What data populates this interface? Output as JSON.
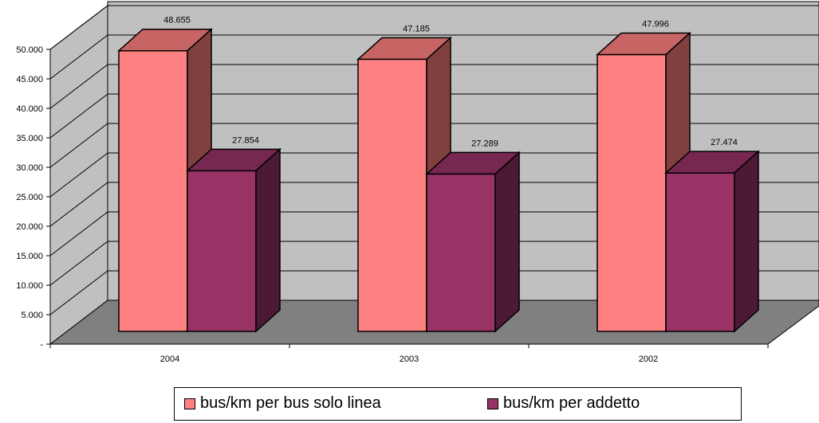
{
  "chart_data": {
    "type": "bar",
    "variant": "3d-clustered-column",
    "categories": [
      "2004",
      "2003",
      "2002"
    ],
    "series": [
      {
        "name": "bus/km per bus solo linea",
        "values": [
          48655,
          47185,
          47996
        ],
        "labels": [
          "48.655",
          "47.185",
          "47.996"
        ],
        "color": "#ff8080"
      },
      {
        "name": "bus/km per addetto",
        "values": [
          27854,
          27289,
          27474
        ],
        "labels": [
          "27.854",
          "27.289",
          "27.474"
        ],
        "color": "#993366"
      }
    ],
    "ylim": [
      0,
      50000
    ],
    "yticks": [
      {
        "value": 0,
        "label": "-"
      },
      {
        "value": 5000,
        "label": "5.000"
      },
      {
        "value": 10000,
        "label": "10.000"
      },
      {
        "value": 15000,
        "label": "15.000"
      },
      {
        "value": 20000,
        "label": "20.000"
      },
      {
        "value": 25000,
        "label": "25.000"
      },
      {
        "value": 30000,
        "label": "30.000"
      },
      {
        "value": 35000,
        "label": "35.000"
      },
      {
        "value": 40000,
        "label": "40.000"
      },
      {
        "value": 45000,
        "label": "45.000"
      },
      {
        "value": 50000,
        "label": "50.000"
      }
    ],
    "title": "",
    "xlabel": "",
    "ylabel": "",
    "grid": true,
    "legend_position": "bottom",
    "colors": {
      "wall": "#c0c0c0",
      "floor": "#808080"
    }
  }
}
